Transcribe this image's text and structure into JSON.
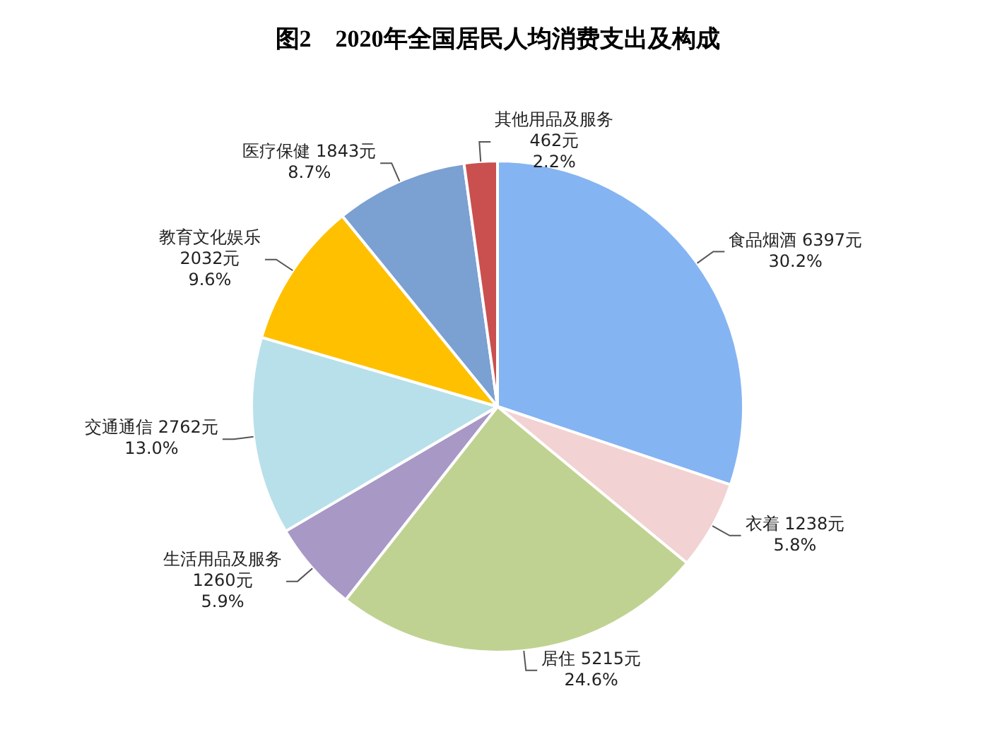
{
  "chart_data": {
    "type": "pie",
    "title": "图2　2020年全国居民人均消费支出及构成",
    "categories": [
      "食品烟酒",
      "衣着",
      "居住",
      "生活用品及服务",
      "交通通信",
      "教育文化娱乐",
      "医疗保健",
      "其他用品及服务"
    ],
    "values": [
      6397,
      1238,
      5215,
      1260,
      2762,
      2032,
      1843,
      462
    ],
    "colors": [
      "#85b4f2",
      "#f2d2d2",
      "#c0d291",
      "#a898c6",
      "#b8e0ea",
      "#ffc000",
      "#7ba0d2",
      "#c9504f"
    ],
    "value_labels": [
      "6397元\n30.2%",
      "1238元\n5.8%",
      "5215元\n24.6%",
      "1260元\n5.9%",
      "2762元\n13.0%",
      "2032元\n9.6%",
      "1843元\n8.7%",
      "462元\n2.2%"
    ],
    "legend": false
  }
}
